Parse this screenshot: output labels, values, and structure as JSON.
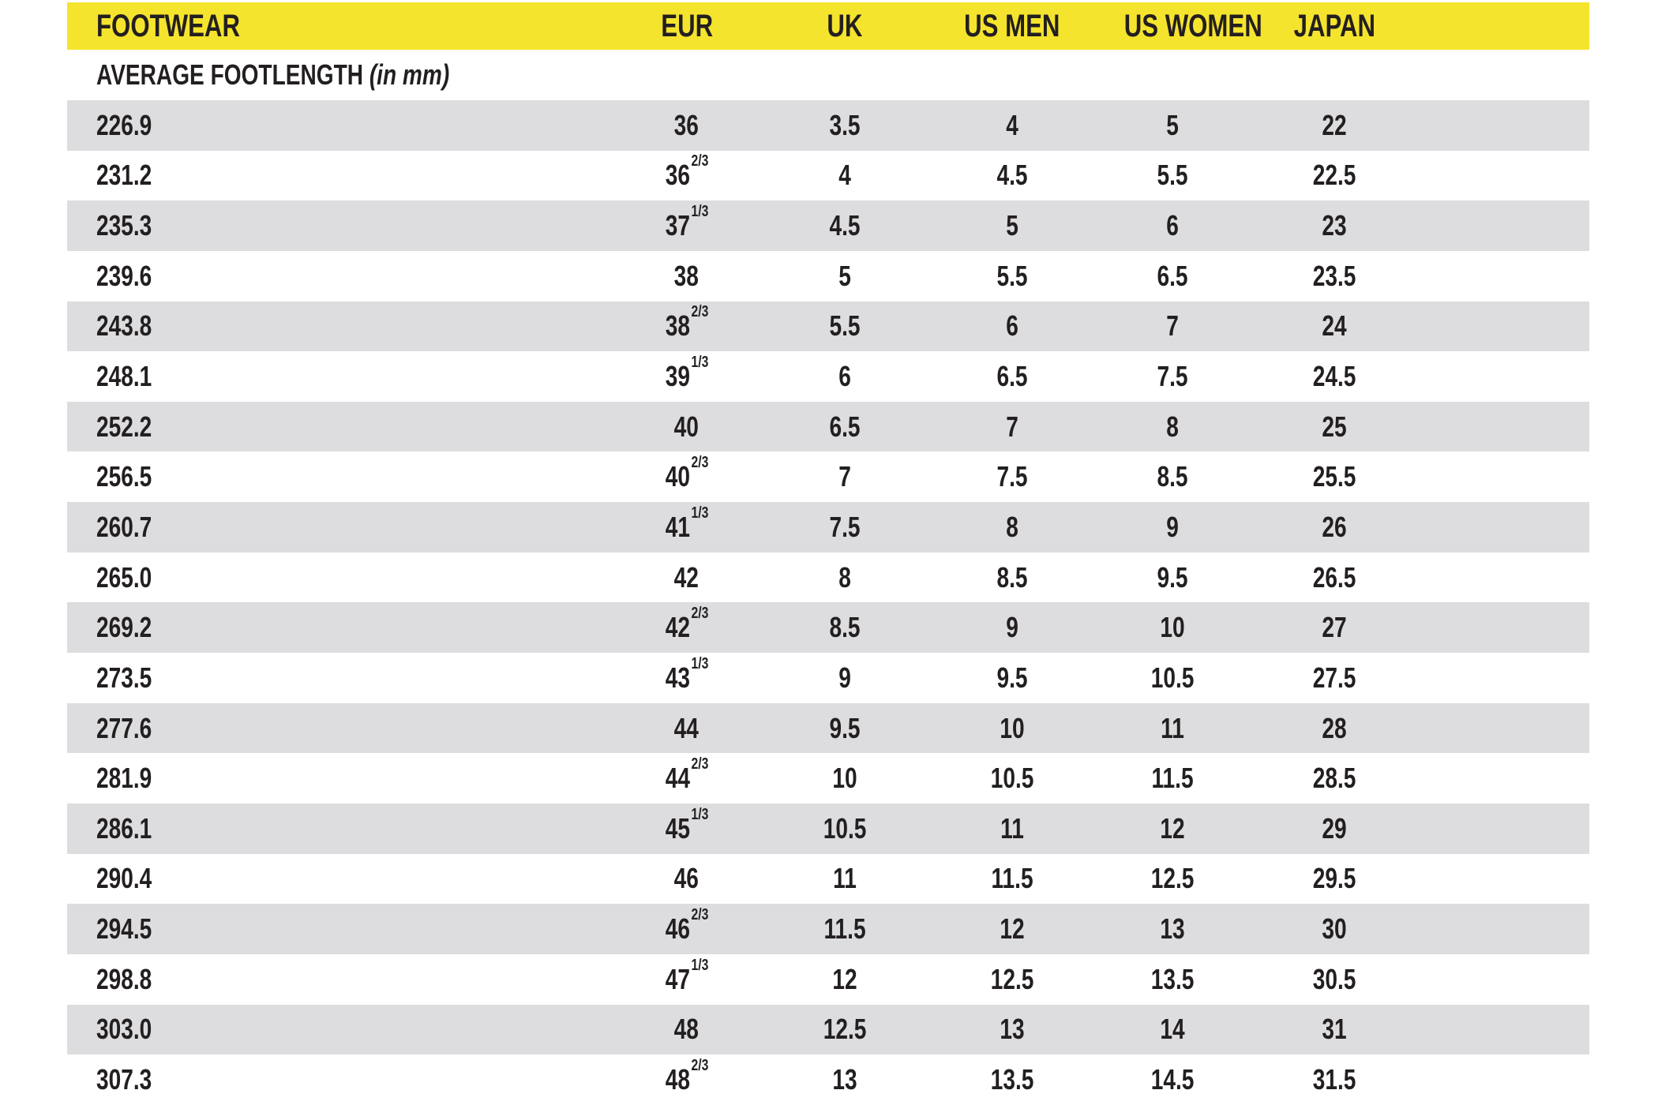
{
  "colors": {
    "header_bg": "#F5E42D",
    "alt_row_bg": "#DDDDDF",
    "text": "#231F20",
    "page_bg": "#FFFFFF"
  },
  "chart_data": {
    "type": "table",
    "title": "FOOTWEAR",
    "columns": [
      "FOOTWEAR",
      "EUR",
      "UK",
      "US MEN",
      "US WOMEN",
      "JAPAN"
    ],
    "subheader": {
      "label": "AVERAGE FOOTLENGTH",
      "unit_note": "(in mm)"
    },
    "rows": [
      {
        "mm": "226.9",
        "eur": "36",
        "eur_sup": "",
        "uk": "3.5",
        "us_men": "4",
        "us_women": "5",
        "japan": "22"
      },
      {
        "mm": "231.2",
        "eur": "36",
        "eur_sup": "2/3",
        "uk": "4",
        "us_men": "4.5",
        "us_women": "5.5",
        "japan": "22.5"
      },
      {
        "mm": "235.3",
        "eur": "37",
        "eur_sup": "1/3",
        "uk": "4.5",
        "us_men": "5",
        "us_women": "6",
        "japan": "23"
      },
      {
        "mm": "239.6",
        "eur": "38",
        "eur_sup": "",
        "uk": "5",
        "us_men": "5.5",
        "us_women": "6.5",
        "japan": "23.5"
      },
      {
        "mm": "243.8",
        "eur": "38",
        "eur_sup": "2/3",
        "uk": "5.5",
        "us_men": "6",
        "us_women": "7",
        "japan": "24"
      },
      {
        "mm": "248.1",
        "eur": "39",
        "eur_sup": "1/3",
        "uk": "6",
        "us_men": "6.5",
        "us_women": "7.5",
        "japan": "24.5"
      },
      {
        "mm": "252.2",
        "eur": "40",
        "eur_sup": "",
        "uk": "6.5",
        "us_men": "7",
        "us_women": "8",
        "japan": "25"
      },
      {
        "mm": "256.5",
        "eur": "40",
        "eur_sup": "2/3",
        "uk": "7",
        "us_men": "7.5",
        "us_women": "8.5",
        "japan": "25.5"
      },
      {
        "mm": "260.7",
        "eur": "41",
        "eur_sup": "1/3",
        "uk": "7.5",
        "us_men": "8",
        "us_women": "9",
        "japan": "26"
      },
      {
        "mm": "265.0",
        "eur": "42",
        "eur_sup": "",
        "uk": "8",
        "us_men": "8.5",
        "us_women": "9.5",
        "japan": "26.5"
      },
      {
        "mm": "269.2",
        "eur": "42",
        "eur_sup": "2/3",
        "uk": "8.5",
        "us_men": "9",
        "us_women": "10",
        "japan": "27"
      },
      {
        "mm": "273.5",
        "eur": "43",
        "eur_sup": "1/3",
        "uk": "9",
        "us_men": "9.5",
        "us_women": "10.5",
        "japan": "27.5"
      },
      {
        "mm": "277.6",
        "eur": "44",
        "eur_sup": "",
        "uk": "9.5",
        "us_men": "10",
        "us_women": "11",
        "japan": "28"
      },
      {
        "mm": "281.9",
        "eur": "44",
        "eur_sup": "2/3",
        "uk": "10",
        "us_men": "10.5",
        "us_women": "11.5",
        "japan": "28.5"
      },
      {
        "mm": "286.1",
        "eur": "45",
        "eur_sup": "1/3",
        "uk": "10.5",
        "us_men": "11",
        "us_women": "12",
        "japan": "29"
      },
      {
        "mm": "290.4",
        "eur": "46",
        "eur_sup": "",
        "uk": "11",
        "us_men": "11.5",
        "us_women": "12.5",
        "japan": "29.5"
      },
      {
        "mm": "294.5",
        "eur": "46",
        "eur_sup": "2/3",
        "uk": "11.5",
        "us_men": "12",
        "us_women": "13",
        "japan": "30"
      },
      {
        "mm": "298.8",
        "eur": "47",
        "eur_sup": "1/3",
        "uk": "12",
        "us_men": "12.5",
        "us_women": "13.5",
        "japan": "30.5"
      },
      {
        "mm": "303.0",
        "eur": "48",
        "eur_sup": "",
        "uk": "12.5",
        "us_men": "13",
        "us_women": "14",
        "japan": "31"
      },
      {
        "mm": "307.3",
        "eur": "48",
        "eur_sup": "2/3",
        "uk": "13",
        "us_men": "13.5",
        "us_women": "14.5",
        "japan": "31.5"
      }
    ]
  }
}
